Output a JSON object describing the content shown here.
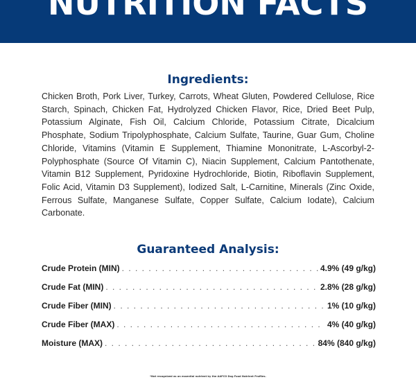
{
  "banner": {
    "title": "NUTRITION FACTS",
    "color": "#063a78"
  },
  "ingredients": {
    "heading": "Ingredients:",
    "text": "Chicken Broth, Pork Liver, Turkey, Carrots, Wheat Gluten, Powdered Cellulose, Rice Starch, Spinach, Chicken Fat, Hydrolyzed Chicken Flavor, Rice, Dried Beet Pulp, Potassium Alginate, Fish Oil, Calcium Chloride, Potassium Citrate, Dicalcium Phosphate, Sodium Tripolyphosphate, Calcium Sulfate, Taurine, Guar Gum, Choline Chloride, Vitamins (Vitamin E Supplement, Thiamine Mononitrate, L-Ascorbyl-2-Polyphosphate (Source Of Vitamin C), Niacin Supplement, Calcium Pantothenate, Vitamin B12 Supplement, Pyridoxine Hydrochloride, Biotin, Riboflavin Supplement, Folic Acid, Vitamin D3 Supplement), Iodized Salt, L-Carnitine, Minerals (Zinc Oxide, Ferrous Sulfate, Manganese Sulfate, Copper Sulfate, Calcium Iodate), Calcium Carbonate."
  },
  "analysis": {
    "heading": "Guaranteed Analysis:",
    "rows": [
      {
        "label": "Crude Protein (MIN)",
        "value": "4.9% (49 g/kg)"
      },
      {
        "label": "Crude Fat (MIN)",
        "value": "2.8% (28 g/kg)"
      },
      {
        "label": "Crude Fiber (MIN)",
        "value": "1% (10 g/kg)"
      },
      {
        "label": "Crude Fiber (MAX)",
        "value": "4% (40 g/kg)"
      },
      {
        "label": "Moisture (MAX)",
        "value": "84% (840 g/kg)"
      }
    ]
  },
  "footnote": "*Not recognized as an essential nutrient by the AAFCO Dog Food Nutrient Profiles."
}
